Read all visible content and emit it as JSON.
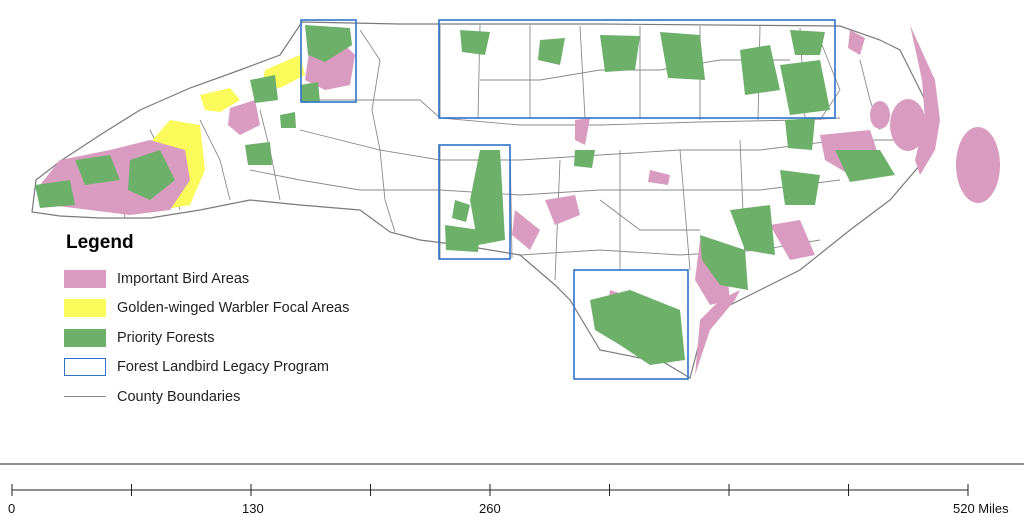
{
  "colors": {
    "important_bird_areas": "#d99bc0",
    "golden_winged_warbler": "#fafa5a",
    "priority_forests": "#6cb06a",
    "forest_landbird_legacy": "#2f73c9",
    "county_boundaries": "#8a8a8a",
    "state_fill": "#ffffff"
  },
  "legend": {
    "title": "Legend",
    "items": [
      {
        "label": "Important Bird Areas",
        "color": "#d99bc0",
        "kind": "fill"
      },
      {
        "label": "Golden-winged Warbler Focal Areas",
        "color": "#fafa5a",
        "kind": "fill"
      },
      {
        "label": "Priority Forests",
        "color": "#6cb06a",
        "kind": "fill"
      },
      {
        "label": "Forest Landbird Legacy Program",
        "color": "#2f73c9",
        "kind": "outline"
      },
      {
        "label": "County Boundaries",
        "color": "#8a8a8a",
        "kind": "line"
      }
    ]
  },
  "scale_bar": {
    "labels": [
      "0",
      "130",
      "260",
      "520 Miles"
    ],
    "max_miles": 520
  }
}
